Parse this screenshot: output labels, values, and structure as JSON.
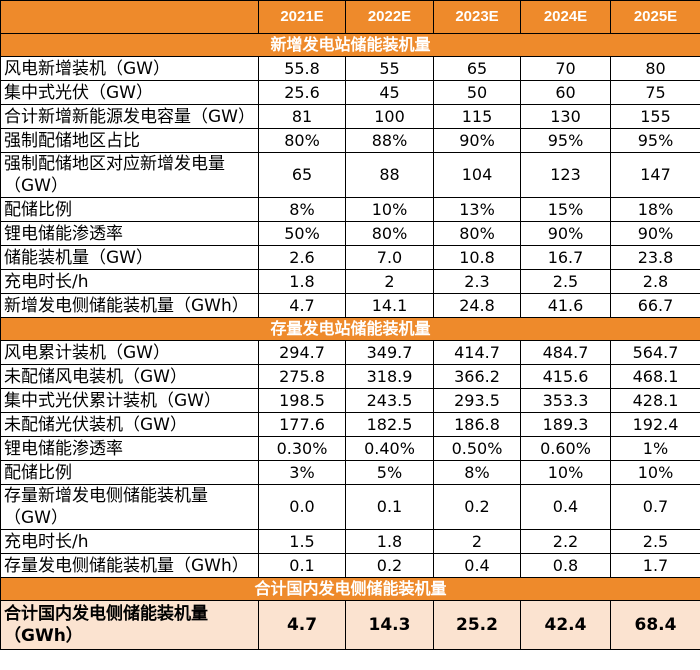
{
  "table": {
    "columns": [
      "2021E",
      "2022E",
      "2023E",
      "2024E",
      "2025E"
    ],
    "sections": [
      {
        "title": "新增发电站储能装机量",
        "rows": [
          {
            "label": "风电新增装机（GW）",
            "cells": [
              "55.8",
              "55",
              "65",
              "70",
              "80"
            ]
          },
          {
            "label": "集中式光伏（GW）",
            "cells": [
              "25.6",
              "45",
              "50",
              "60",
              "75"
            ]
          },
          {
            "label": "合计新增新能源发电容量（GW）",
            "cells": [
              "81",
              "100",
              "115",
              "130",
              "155"
            ]
          },
          {
            "label": "强制配储地区占比",
            "cells": [
              "80%",
              "88%",
              "90%",
              "95%",
              "95%"
            ]
          },
          {
            "label": "强制配储地区对应新增发电量（GW）",
            "cells": [
              "65",
              "88",
              "104",
              "123",
              "147"
            ]
          },
          {
            "label": "配储比例",
            "cells": [
              "8%",
              "10%",
              "13%",
              "15%",
              "18%"
            ]
          },
          {
            "label": "锂电储能渗透率",
            "cells": [
              "50%",
              "80%",
              "80%",
              "90%",
              "90%"
            ]
          },
          {
            "label": "储能装机量（GW）",
            "cells": [
              "2.6",
              "7.0",
              "10.8",
              "16.7",
              "23.8"
            ]
          },
          {
            "label": "充电时长/h",
            "cells": [
              "1.8",
              "2",
              "2.3",
              "2.5",
              "2.8"
            ]
          },
          {
            "label": "新增发电侧储能装机量（GWh）",
            "cells": [
              "4.7",
              "14.1",
              "24.8",
              "41.6",
              "66.7"
            ]
          }
        ]
      },
      {
        "title": "存量发电站储能装机量",
        "rows": [
          {
            "label": "风电累计装机（GW）",
            "cells": [
              "294.7",
              "349.7",
              "414.7",
              "484.7",
              "564.7"
            ]
          },
          {
            "label": "未配储风电装机（GW）",
            "cells": [
              "275.8",
              "318.9",
              "366.2",
              "415.6",
              "468.1"
            ]
          },
          {
            "label": "集中式光伏累计装机（GW）",
            "cells": [
              "198.5",
              "243.5",
              "293.5",
              "353.3",
              "428.1"
            ]
          },
          {
            "label": "未配储光伏装机（GW）",
            "cells": [
              "177.6",
              "182.5",
              "186.8",
              "189.3",
              "192.4"
            ]
          },
          {
            "label": "锂电储能渗透率",
            "cells": [
              "0.30%",
              "0.40%",
              "0.50%",
              "0.60%",
              "1%"
            ]
          },
          {
            "label": "配储比例",
            "cells": [
              "3%",
              "5%",
              "8%",
              "10%",
              "10%"
            ]
          },
          {
            "label": "存量新增发电侧储能装机量（GW）",
            "cells": [
              "0.0",
              "0.1",
              "0.2",
              "0.4",
              "0.7"
            ]
          },
          {
            "label": "充电时长/h",
            "cells": [
              "1.5",
              "1.8",
              "2",
              "2.2",
              "2.5"
            ]
          },
          {
            "label": "存量发电侧储能装机量（GWh）",
            "cells": [
              "0.1",
              "0.2",
              "0.4",
              "0.8",
              "1.7"
            ]
          }
        ]
      },
      {
        "title": "合计国内发电侧储能装机量",
        "rows": [
          {
            "label": "合计国内发电侧储能装机量（GWh）",
            "cells": [
              "4.7",
              "14.3",
              "25.2",
              "42.4",
              "68.4"
            ]
          }
        ]
      }
    ]
  }
}
